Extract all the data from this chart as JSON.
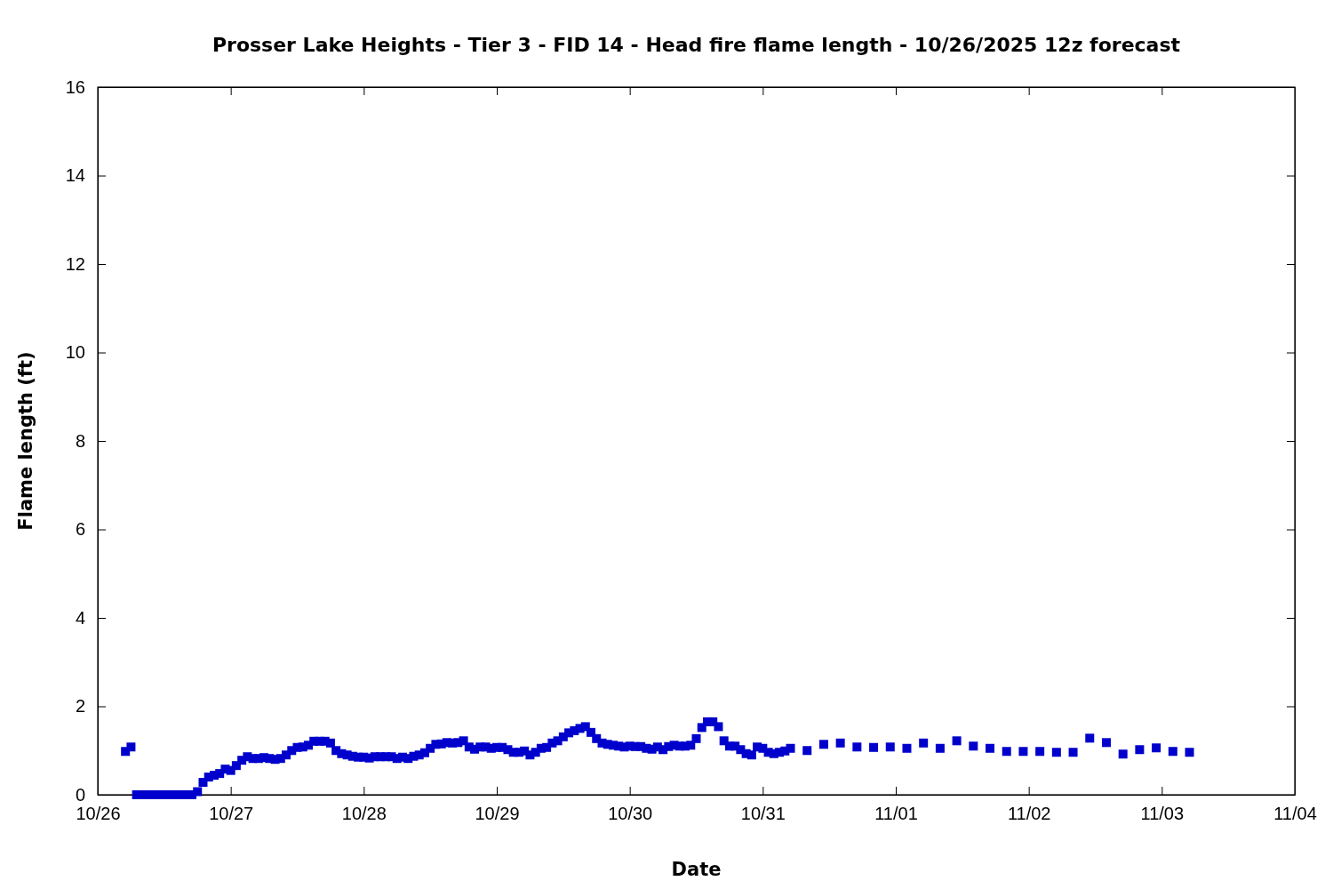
{
  "chart_data": {
    "type": "scatter",
    "title": "Prosser Lake Heights - Tier 3 - FID 14 - Head fire flame length - 10/26/2025 12z forecast",
    "xlabel": "Date",
    "ylabel": "Flame length (ft)",
    "x": [
      "2025-10-26T05:00",
      "2025-10-26T06:00",
      "2025-10-26T07:00",
      "2025-10-26T08:00",
      "2025-10-26T09:00",
      "2025-10-26T10:00",
      "2025-10-26T11:00",
      "2025-10-26T12:00",
      "2025-10-26T13:00",
      "2025-10-26T14:00",
      "2025-10-26T15:00",
      "2025-10-26T16:00",
      "2025-10-26T17:00",
      "2025-10-26T18:00",
      "2025-10-26T19:00",
      "2025-10-26T20:00",
      "2025-10-26T21:00",
      "2025-10-26T22:00",
      "2025-10-26T23:00",
      "2025-10-27T00:00",
      "2025-10-27T01:00",
      "2025-10-27T02:00",
      "2025-10-27T03:00",
      "2025-10-27T04:00",
      "2025-10-27T05:00",
      "2025-10-27T06:00",
      "2025-10-27T07:00",
      "2025-10-27T08:00",
      "2025-10-27T09:00",
      "2025-10-27T10:00",
      "2025-10-27T11:00",
      "2025-10-27T12:00",
      "2025-10-27T13:00",
      "2025-10-27T14:00",
      "2025-10-27T15:00",
      "2025-10-27T16:00",
      "2025-10-27T17:00",
      "2025-10-27T18:00",
      "2025-10-27T19:00",
      "2025-10-27T20:00",
      "2025-10-27T21:00",
      "2025-10-27T22:00",
      "2025-10-27T23:00",
      "2025-10-28T00:00",
      "2025-10-28T01:00",
      "2025-10-28T02:00",
      "2025-10-28T03:00",
      "2025-10-28T04:00",
      "2025-10-28T05:00",
      "2025-10-28T06:00",
      "2025-10-28T07:00",
      "2025-10-28T08:00",
      "2025-10-28T09:00",
      "2025-10-28T10:00",
      "2025-10-28T11:00",
      "2025-10-28T12:00",
      "2025-10-28T13:00",
      "2025-10-28T14:00",
      "2025-10-28T15:00",
      "2025-10-28T16:00",
      "2025-10-28T17:00",
      "2025-10-28T18:00",
      "2025-10-28T19:00",
      "2025-10-28T20:00",
      "2025-10-28T21:00",
      "2025-10-28T22:00",
      "2025-10-28T23:00",
      "2025-10-29T00:00",
      "2025-10-29T01:00",
      "2025-10-29T02:00",
      "2025-10-29T03:00",
      "2025-10-29T04:00",
      "2025-10-29T05:00",
      "2025-10-29T06:00",
      "2025-10-29T07:00",
      "2025-10-29T08:00",
      "2025-10-29T09:00",
      "2025-10-29T10:00",
      "2025-10-29T11:00",
      "2025-10-29T12:00",
      "2025-10-29T13:00",
      "2025-10-29T14:00",
      "2025-10-29T15:00",
      "2025-10-29T16:00",
      "2025-10-29T17:00",
      "2025-10-29T18:00",
      "2025-10-29T19:00",
      "2025-10-29T20:00",
      "2025-10-29T21:00",
      "2025-10-29T22:00",
      "2025-10-29T23:00",
      "2025-10-30T00:00",
      "2025-10-30T01:00",
      "2025-10-30T02:00",
      "2025-10-30T03:00",
      "2025-10-30T04:00",
      "2025-10-30T05:00",
      "2025-10-30T06:00",
      "2025-10-30T07:00",
      "2025-10-30T08:00",
      "2025-10-30T09:00",
      "2025-10-30T10:00",
      "2025-10-30T11:00",
      "2025-10-30T12:00",
      "2025-10-30T13:00",
      "2025-10-30T14:00",
      "2025-10-30T15:00",
      "2025-10-30T16:00",
      "2025-10-30T17:00",
      "2025-10-30T18:00",
      "2025-10-30T19:00",
      "2025-10-30T20:00",
      "2025-10-30T21:00",
      "2025-10-30T22:00",
      "2025-10-30T23:00",
      "2025-10-31T00:00",
      "2025-10-31T01:00",
      "2025-10-31T02:00",
      "2025-10-31T03:00",
      "2025-10-31T04:00",
      "2025-10-31T05:00",
      "2025-10-31T08:00",
      "2025-10-31T11:00",
      "2025-10-31T14:00",
      "2025-10-31T17:00",
      "2025-10-31T20:00",
      "2025-10-31T23:00",
      "2025-11-01T02:00",
      "2025-11-01T05:00",
      "2025-11-01T08:00",
      "2025-11-01T11:00",
      "2025-11-01T14:00",
      "2025-11-01T17:00",
      "2025-11-01T20:00",
      "2025-11-01T23:00",
      "2025-11-02T02:00",
      "2025-11-02T05:00",
      "2025-11-02T08:00",
      "2025-11-02T11:00",
      "2025-11-02T14:00",
      "2025-11-02T17:00",
      "2025-11-02T20:00",
      "2025-11-02T23:00",
      "2025-11-03T02:00",
      "2025-11-03T05:00"
    ],
    "values": [
      0.98,
      1.08,
      0,
      0,
      0,
      0,
      0,
      0,
      0,
      0,
      0,
      0,
      0,
      0.07,
      0.28,
      0.4,
      0.44,
      0.48,
      0.58,
      0.55,
      0.66,
      0.78,
      0.86,
      0.82,
      0.82,
      0.84,
      0.82,
      0.8,
      0.82,
      0.9,
      1.0,
      1.07,
      1.08,
      1.12,
      1.21,
      1.21,
      1.21,
      1.17,
      1.0,
      0.93,
      0.9,
      0.87,
      0.85,
      0.85,
      0.83,
      0.86,
      0.86,
      0.86,
      0.86,
      0.82,
      0.85,
      0.82,
      0.87,
      0.9,
      0.95,
      1.05,
      1.14,
      1.15,
      1.18,
      1.17,
      1.18,
      1.22,
      1.08,
      1.03,
      1.08,
      1.08,
      1.05,
      1.07,
      1.07,
      1.02,
      0.96,
      0.96,
      0.99,
      0.9,
      0.96,
      1.05,
      1.07,
      1.17,
      1.22,
      1.31,
      1.4,
      1.45,
      1.5,
      1.54,
      1.41,
      1.27,
      1.17,
      1.14,
      1.12,
      1.1,
      1.08,
      1.1,
      1.09,
      1.09,
      1.05,
      1.03,
      1.08,
      1.02,
      1.09,
      1.12,
      1.1,
      1.1,
      1.12,
      1.27,
      1.52,
      1.65,
      1.65,
      1.54,
      1.22,
      1.1,
      1.1,
      1.02,
      0.93,
      0.9,
      1.08,
      1.05,
      0.96,
      0.93,
      0.96,
      0.99,
      1.05,
      1.0,
      1.14,
      1.17,
      1.08,
      1.07,
      1.08,
      1.05,
      1.17,
      1.05,
      1.22,
      1.1,
      1.05,
      0.98,
      0.98,
      0.98,
      0.96,
      0.96,
      1.28,
      1.18,
      0.92,
      1.02,
      1.06,
      0.98,
      0.96
    ],
    "color": "#0000cc",
    "marker": "square",
    "xlim": [
      "2025-10-26",
      "2025-11-04"
    ],
    "xticks": [
      {
        "value": "2025-10-26",
        "label": "10/26"
      },
      {
        "value": "2025-10-27",
        "label": "10/27"
      },
      {
        "value": "2025-10-28",
        "label": "10/28"
      },
      {
        "value": "2025-10-29",
        "label": "10/29"
      },
      {
        "value": "2025-10-30",
        "label": "10/30"
      },
      {
        "value": "2025-10-31",
        "label": "10/31"
      },
      {
        "value": "2025-11-01",
        "label": "11/01"
      },
      {
        "value": "2025-11-02",
        "label": "11/02"
      },
      {
        "value": "2025-11-03",
        "label": "11/03"
      },
      {
        "value": "2025-11-04",
        "label": "11/04"
      }
    ],
    "ylim": [
      0,
      16
    ],
    "yticks": [
      0,
      2,
      4,
      6,
      8,
      10,
      12,
      14,
      16
    ]
  }
}
